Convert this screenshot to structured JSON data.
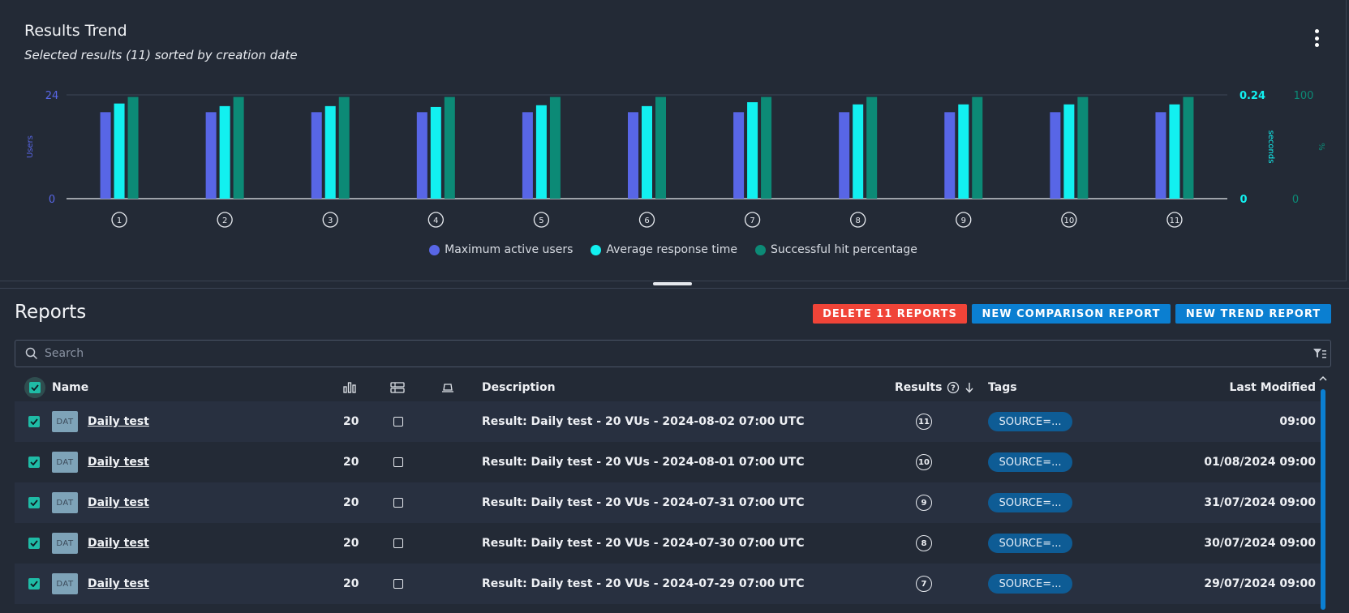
{
  "trend": {
    "title": "Results Trend",
    "subtitle": "Selected results (11) sorted by creation date",
    "menu_icon": "kebab-menu-icon"
  },
  "chart_data": {
    "type": "bar",
    "categories": [
      "1",
      "2",
      "3",
      "4",
      "5",
      "6",
      "7",
      "8",
      "9",
      "10",
      "11"
    ],
    "series": [
      {
        "name": "Maximum active users",
        "axis": "left",
        "color": "#5866e6",
        "values": [
          20,
          20,
          20,
          20,
          20,
          20,
          20,
          20,
          20,
          20,
          20
        ]
      },
      {
        "name": "Average response time",
        "axis": "right1",
        "color": "#12f0f0",
        "values": [
          0.22,
          0.214,
          0.214,
          0.212,
          0.216,
          0.214,
          0.223,
          0.218,
          0.218,
          0.218,
          0.218
        ]
      },
      {
        "name": "Successful hit percentage",
        "axis": "right2",
        "color": "#0c8a76",
        "values": [
          100,
          100,
          100,
          100,
          100,
          100,
          100,
          100,
          100,
          100,
          100
        ]
      }
    ],
    "axes": {
      "left": {
        "label": "Users",
        "ticks": [
          "24",
          "0"
        ],
        "range": [
          0,
          24
        ],
        "color": "#5866e6"
      },
      "right1": {
        "label": "seconds",
        "ticks": [
          "0.24",
          "0"
        ],
        "range": [
          0,
          0.24
        ],
        "color": "#12f0f0"
      },
      "right2": {
        "label": "%",
        "ticks": [
          "100",
          "0"
        ],
        "range": [
          0,
          100
        ],
        "color": "#0c8a76"
      }
    },
    "legend_position": "bottom-center",
    "grid": "top line only"
  },
  "reports": {
    "title": "Reports",
    "delete_label": "DELETE 11 REPORTS",
    "compare_label": "NEW COMPARISON REPORT",
    "trend_label": "NEW TREND REPORT",
    "search_placeholder": "Search",
    "columns": {
      "name": "Name",
      "description": "Description",
      "results": "Results",
      "tags": "Tags",
      "last_modified": "Last Modified"
    },
    "rows": [
      {
        "badge": "DAT",
        "name": "Daily test",
        "vus": "20",
        "description": "Result: Daily test - 20 VUs - 2024-08-02 07:00 UTC",
        "results": "11",
        "tag": "SOURCE=...",
        "modified": "09:00"
      },
      {
        "badge": "DAT",
        "name": "Daily test",
        "vus": "20",
        "description": "Result: Daily test - 20 VUs - 2024-08-01 07:00 UTC",
        "results": "10",
        "tag": "SOURCE=...",
        "modified": "01/08/2024 09:00"
      },
      {
        "badge": "DAT",
        "name": "Daily test",
        "vus": "20",
        "description": "Result: Daily test - 20 VUs - 2024-07-31 07:00 UTC",
        "results": "9",
        "tag": "SOURCE=...",
        "modified": "31/07/2024 09:00"
      },
      {
        "badge": "DAT",
        "name": "Daily test",
        "vus": "20",
        "description": "Result: Daily test - 20 VUs - 2024-07-30 07:00 UTC",
        "results": "8",
        "tag": "SOURCE=...",
        "modified": "30/07/2024 09:00"
      },
      {
        "badge": "DAT",
        "name": "Daily test",
        "vus": "20",
        "description": "Result: Daily test - 20 VUs - 2024-07-29 07:00 UTC",
        "results": "7",
        "tag": "SOURCE=...",
        "modified": "29/07/2024 09:00"
      }
    ]
  }
}
